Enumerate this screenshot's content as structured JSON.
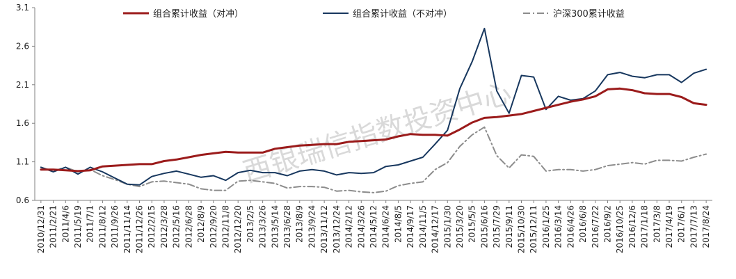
{
  "chart_data": {
    "type": "line",
    "title": "",
    "xlabel": "",
    "ylabel": "",
    "ylim": [
      0.6,
      3.1
    ],
    "yticks": [
      0.6,
      1.1,
      1.6,
      2.1,
      2.6,
      3.1
    ],
    "ytick_labels": [
      "0.6",
      "1.1",
      "1.6",
      "2.1",
      "2.6",
      "3.1"
    ],
    "grid": false,
    "legend_position": "top",
    "watermark": "西银瑞信指数投资中心",
    "categories": [
      "2010/12/31",
      "2011/2/21",
      "2011/4/6",
      "2011/5/19",
      "2011/7/1",
      "2011/8/12",
      "2011/9/26",
      "2011/11/14",
      "2011/12/26",
      "2012/2/15",
      "2012/3/28",
      "2012/5/16",
      "2012/6/28",
      "2012/8/9",
      "2012/9/20",
      "2012/11/8",
      "2012/12/20",
      "2013/2/5",
      "2013/3/26",
      "2013/5/14",
      "2013/6/28",
      "2013/8/9",
      "2013/9/24",
      "2013/11/12",
      "2013/12/24",
      "2014/2/12",
      "2014/3/26",
      "2014/5/12",
      "2014/6/24",
      "2014/8/5",
      "2014/9/17",
      "2014/11/5",
      "2014/12/17",
      "2015/1/30",
      "2015/3/20",
      "2015/5/5",
      "2015/6/16",
      "2015/7/29",
      "2015/9/11",
      "2015/10/30",
      "2015/12/11",
      "2016/1/25",
      "2016/3/14",
      "2016/4/26",
      "2016/6/8",
      "2016/7/22",
      "2016/9/2",
      "2016/10/25",
      "2016/12/6",
      "2017/1/18",
      "2017/3/8",
      "2017/4/19",
      "2017/6/1",
      "2017/7/13",
      "2017/8/24"
    ],
    "series": [
      {
        "name": "组合累计收益（对冲）",
        "color": "#9b1b1b",
        "style": "solid",
        "values": [
          1.0,
          1.0,
          0.99,
          0.98,
          0.99,
          1.04,
          1.05,
          1.06,
          1.07,
          1.07,
          1.11,
          1.13,
          1.16,
          1.19,
          1.21,
          1.23,
          1.22,
          1.22,
          1.22,
          1.27,
          1.29,
          1.31,
          1.32,
          1.33,
          1.33,
          1.36,
          1.37,
          1.38,
          1.39,
          1.43,
          1.46,
          1.45,
          1.45,
          1.44,
          1.52,
          1.61,
          1.67,
          1.68,
          1.7,
          1.72,
          1.76,
          1.8,
          1.84,
          1.88,
          1.91,
          1.95,
          2.04,
          2.05,
          2.03,
          1.99,
          1.98,
          1.98,
          1.94,
          1.86,
          1.84
        ]
      },
      {
        "name": "组合累计收益（不对冲）",
        "color": "#17375e",
        "style": "solid",
        "values": [
          1.03,
          0.97,
          1.03,
          0.94,
          1.03,
          0.97,
          0.89,
          0.81,
          0.8,
          0.91,
          0.95,
          0.98,
          0.94,
          0.9,
          0.92,
          0.86,
          0.96,
          0.99,
          0.96,
          0.96,
          0.92,
          0.98,
          1.0,
          0.98,
          0.93,
          0.96,
          0.95,
          0.96,
          1.04,
          1.06,
          1.11,
          1.16,
          1.33,
          1.51,
          2.05,
          2.4,
          2.83,
          2.02,
          1.73,
          2.22,
          2.2,
          1.78,
          1.95,
          1.9,
          1.92,
          2.02,
          2.23,
          2.26,
          2.21,
          2.19,
          2.23,
          2.23,
          2.13,
          2.25,
          2.3
        ]
      },
      {
        "name": "沪深300累计收益",
        "color": "#8c8c8c",
        "style": "dashdot",
        "values": [
          1.03,
          0.98,
          1.03,
          0.97,
          1.0,
          0.92,
          0.87,
          0.81,
          0.78,
          0.84,
          0.85,
          0.83,
          0.81,
          0.75,
          0.73,
          0.73,
          0.85,
          0.86,
          0.84,
          0.82,
          0.76,
          0.78,
          0.78,
          0.77,
          0.72,
          0.73,
          0.71,
          0.7,
          0.72,
          0.79,
          0.82,
          0.84,
          1.0,
          1.09,
          1.3,
          1.45,
          1.55,
          1.18,
          1.02,
          1.19,
          1.17,
          0.98,
          1.0,
          1.0,
          0.98,
          1.0,
          1.05,
          1.07,
          1.09,
          1.07,
          1.12,
          1.12,
          1.11,
          1.16,
          1.2
        ]
      }
    ]
  }
}
